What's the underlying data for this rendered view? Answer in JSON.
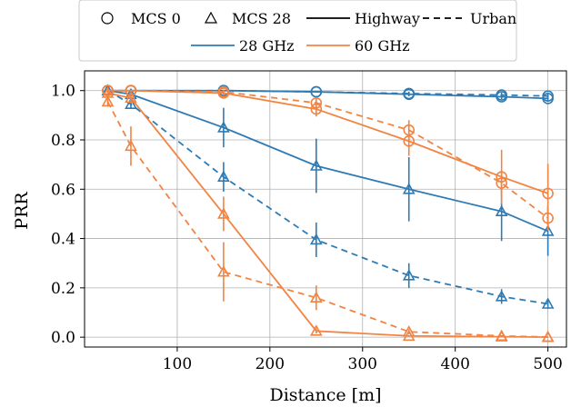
{
  "chart_data": {
    "type": "line",
    "xlabel": "Distance [m]",
    "ylabel": "PRR",
    "xlim": [
      0,
      520
    ],
    "ylim": [
      -0.04,
      1.08
    ],
    "xticks": [
      100,
      200,
      300,
      400,
      500
    ],
    "yticks": [
      0.0,
      0.2,
      0.4,
      0.6,
      0.8,
      1.0
    ],
    "ytick_labels": [
      "0.0",
      "0.2",
      "0.4",
      "0.6",
      "0.8",
      "1.0"
    ],
    "grid": true,
    "legend": {
      "placement": "top-center",
      "markers": [
        {
          "label": "MCS 0",
          "symbol": "circle"
        },
        {
          "label": "MCS 28",
          "symbol": "triangle"
        }
      ],
      "linestyles": [
        {
          "label": "Highway",
          "style": "solid"
        },
        {
          "label": "Urban",
          "style": "dashed"
        }
      ],
      "colors": [
        {
          "label": "28 GHz",
          "color": "#2e7bb4"
        },
        {
          "label": "60 GHz",
          "color": "#f28443"
        }
      ]
    },
    "series": [
      {
        "freq": "28 GHz",
        "mcs": "MCS 0",
        "scenario": "Highway",
        "color": "#2e7bb4",
        "marker": "circle",
        "dash": false,
        "x": [
          25,
          50,
          150,
          250,
          350,
          450,
          500
        ],
        "y": [
          1.0,
          1.0,
          1.0,
          0.995,
          0.985,
          0.975,
          0.968
        ],
        "err": [
          0.003,
          0.003,
          0.004,
          0.005,
          0.008,
          0.01,
          0.012
        ]
      },
      {
        "freq": "28 GHz",
        "mcs": "MCS 0",
        "scenario": "Urban",
        "color": "#2e7bb4",
        "marker": "circle",
        "dash": true,
        "x": [
          25,
          50,
          150,
          250,
          350,
          450,
          500
        ],
        "y": [
          1.0,
          1.0,
          1.0,
          0.995,
          0.988,
          0.982,
          0.978
        ],
        "err": [
          0.003,
          0.003,
          0.004,
          0.005,
          0.008,
          0.01,
          0.012
        ]
      },
      {
        "freq": "28 GHz",
        "mcs": "MCS 28",
        "scenario": "Highway",
        "color": "#2e7bb4",
        "marker": "triangle",
        "dash": false,
        "x": [
          25,
          50,
          150,
          250,
          350,
          450,
          500
        ],
        "y": [
          1.0,
          0.985,
          0.85,
          0.695,
          0.6,
          0.51,
          0.43
        ],
        "err": [
          0.005,
          0.01,
          0.08,
          0.11,
          0.13,
          0.12,
          0.1
        ]
      },
      {
        "freq": "28 GHz",
        "mcs": "MCS 28",
        "scenario": "Urban",
        "color": "#2e7bb4",
        "marker": "triangle",
        "dash": true,
        "x": [
          25,
          50,
          150,
          250,
          350,
          450,
          500
        ],
        "y": [
          1.0,
          0.945,
          0.65,
          0.395,
          0.25,
          0.165,
          0.135
        ],
        "err": [
          0.005,
          0.02,
          0.06,
          0.07,
          0.05,
          0.03,
          0.02
        ]
      },
      {
        "freq": "60 GHz",
        "mcs": "MCS 0",
        "scenario": "Highway",
        "color": "#f28443",
        "marker": "circle",
        "dash": false,
        "x": [
          25,
          50,
          150,
          250,
          350,
          450,
          500
        ],
        "y": [
          1.0,
          1.0,
          0.99,
          0.925,
          0.795,
          0.65,
          0.583
        ],
        "err": [
          0.003,
          0.003,
          0.01,
          0.03,
          0.06,
          0.11,
          0.12
        ]
      },
      {
        "freq": "60 GHz",
        "mcs": "MCS 0",
        "scenario": "Urban",
        "color": "#f28443",
        "marker": "circle",
        "dash": true,
        "x": [
          25,
          50,
          150,
          250,
          350,
          450,
          500
        ],
        "y": [
          1.0,
          1.0,
          0.995,
          0.95,
          0.84,
          0.625,
          0.483
        ],
        "err": [
          0.003,
          0.003,
          0.01,
          0.02,
          0.04,
          0.05,
          0.05
        ]
      },
      {
        "freq": "60 GHz",
        "mcs": "MCS 28",
        "scenario": "Highway",
        "color": "#f28443",
        "marker": "triangle",
        "dash": false,
        "x": [
          25,
          50,
          150,
          250,
          350,
          450,
          500
        ],
        "y": [
          0.99,
          0.97,
          0.5,
          0.025,
          0.005,
          0.002,
          0.0
        ],
        "err": [
          0.01,
          0.02,
          0.07,
          0.01,
          0.005,
          0.003,
          0.002
        ]
      },
      {
        "freq": "60 GHz",
        "mcs": "MCS 28",
        "scenario": "Urban",
        "color": "#f28443",
        "marker": "triangle",
        "dash": true,
        "x": [
          25,
          50,
          150,
          250,
          350,
          450,
          500
        ],
        "y": [
          0.955,
          0.775,
          0.265,
          0.16,
          0.022,
          0.005,
          0.001
        ],
        "err": [
          0.02,
          0.08,
          0.12,
          0.05,
          0.01,
          0.005,
          0.002
        ]
      }
    ]
  }
}
